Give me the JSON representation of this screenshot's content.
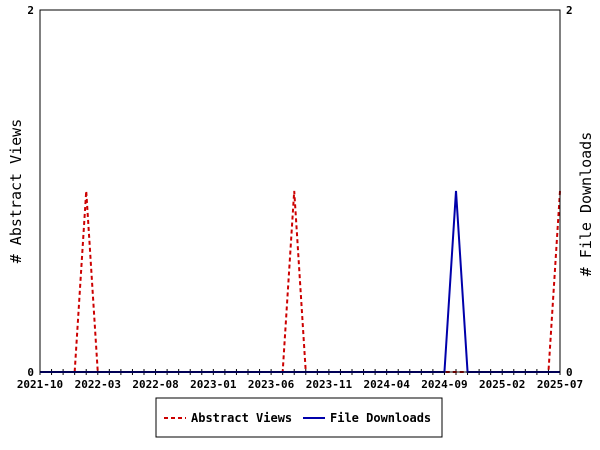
{
  "chart_data": {
    "type": "line",
    "title": "",
    "ylabel_left": "# Abstract Views",
    "ylabel_right": "# File Downloads",
    "x_tick_labels": [
      "2021-10",
      "2022-03",
      "2022-08",
      "2023-01",
      "2023-06",
      "2023-11",
      "2024-04",
      "2024-09",
      "2025-02",
      "2025-07"
    ],
    "x_range": [
      "2021-10",
      "2025-07"
    ],
    "ylim_left": [
      0,
      2
    ],
    "ylim_right": [
      0,
      2
    ],
    "y_tick_labels_left": [
      "0",
      "2"
    ],
    "y_tick_labels_right": [
      "0",
      "2"
    ],
    "grid": false,
    "legend_position": "bottom",
    "series": [
      {
        "name": "Abstract Views",
        "axis": "left",
        "color": "#cc0000",
        "style": "dashed",
        "points": [
          [
            "2021-10",
            0
          ],
          [
            "2022-01",
            0
          ],
          [
            "2022-02",
            1
          ],
          [
            "2022-03",
            0
          ],
          [
            "2023-07",
            0
          ],
          [
            "2023-08",
            1
          ],
          [
            "2023-09",
            0
          ],
          [
            "2025-06",
            0
          ],
          [
            "2025-07",
            1
          ]
        ]
      },
      {
        "name": "File Downloads",
        "axis": "right",
        "color": "#0000aa",
        "style": "solid",
        "points": [
          [
            "2021-10",
            0
          ],
          [
            "2024-09",
            0
          ],
          [
            "2024-10",
            1
          ],
          [
            "2024-11",
            0
          ],
          [
            "2025-07",
            0
          ]
        ]
      }
    ]
  }
}
